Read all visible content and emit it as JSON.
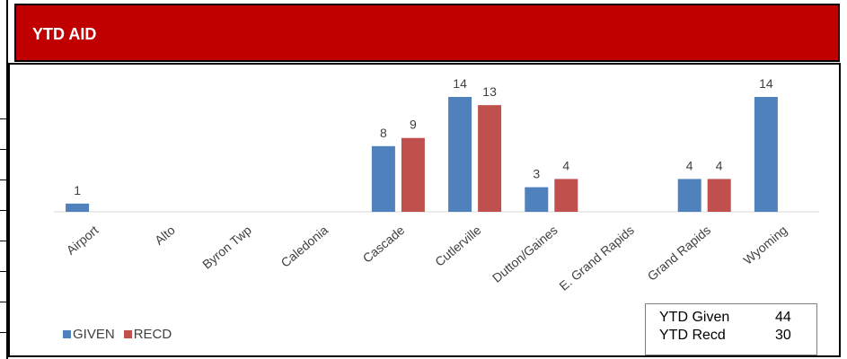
{
  "header": {
    "title": "YTD AID"
  },
  "colors": {
    "banner": "#c00000",
    "given": "#4f81bd",
    "recd": "#c0504d",
    "axis": "#d9d9d9",
    "label": "#404040"
  },
  "chart_data": {
    "type": "bar",
    "categories": [
      "Airport",
      "Alto",
      "Byron Twp",
      "Caledonia",
      "Cascade",
      "Cutlerville",
      "Dutton/Gaines",
      "E. Grand Rapids",
      "Grand Rapids",
      "Wyoming"
    ],
    "series": [
      {
        "name": "GIVEN",
        "values": [
          1,
          null,
          null,
          null,
          8,
          14,
          3,
          null,
          4,
          14
        ]
      },
      {
        "name": "RECD",
        "values": [
          null,
          null,
          null,
          null,
          9,
          13,
          4,
          null,
          4,
          null
        ]
      }
    ],
    "ylim": [
      0,
      14
    ],
    "grid": false,
    "legend_position": "bottom-left",
    "data_labels": true
  },
  "legend": {
    "given": "GIVEN",
    "recd": "RECD"
  },
  "summary": {
    "given_label": "YTD Given",
    "given_value": "44",
    "recd_label": "YTD Recd",
    "recd_value": "30"
  }
}
